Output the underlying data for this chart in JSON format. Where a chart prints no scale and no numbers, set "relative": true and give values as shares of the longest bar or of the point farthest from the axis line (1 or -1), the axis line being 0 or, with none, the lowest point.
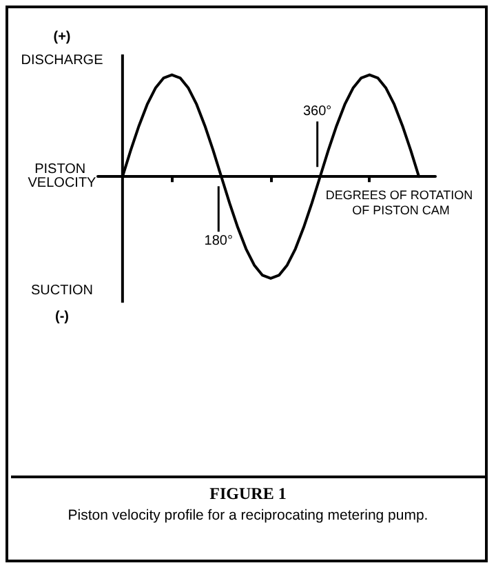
{
  "chart_data": {
    "type": "line",
    "relative": true,
    "title": "FIGURE 1",
    "subtitle": "Piston velocity profile for a reciprocating metering pump.",
    "xlabel": "DEGREES OF ROTATION OF PISTON CAM",
    "categories": [
      null,
      null,
      null,
      null,
      null,
      null,
      null,
      null,
      null,
      null,
      null,
      null,
      null,
      null,
      null,
      null,
      null,
      null,
      null,
      null,
      null,
      null,
      null,
      null,
      null,
      null,
      null,
      null,
      null,
      null,
      null,
      null,
      null,
      null,
      null,
      null,
      null,
      null,
      null,
      null,
      null,
      null
    ],
    "series": [
      {
        "color": "#000000",
        "values": [
          null,
          null,
          null,
          0,
          0.26,
          0.5,
          0.71,
          0.87,
          0.97,
          1,
          0.97,
          0.87,
          0.71,
          0.5,
          0.26,
          0,
          -0.26,
          -0.5,
          -0.71,
          -0.87,
          -0.97,
          -1,
          -0.97,
          -0.87,
          -0.71,
          -0.5,
          -0.26,
          0,
          0.26,
          0.5,
          0.71,
          0.87,
          0.97,
          1,
          0.97,
          0.87,
          0.71,
          0.5,
          0.26,
          0,
          null,
          null
        ]
      }
    ],
    "annotations": [
      "(+)",
      "DISCHARGE",
      "PISTON VELOCITY",
      "SUCTION",
      "(-)",
      "180°",
      "360°"
    ],
    "grid": false,
    "marker": "none",
    "line_style": "solid"
  }
}
